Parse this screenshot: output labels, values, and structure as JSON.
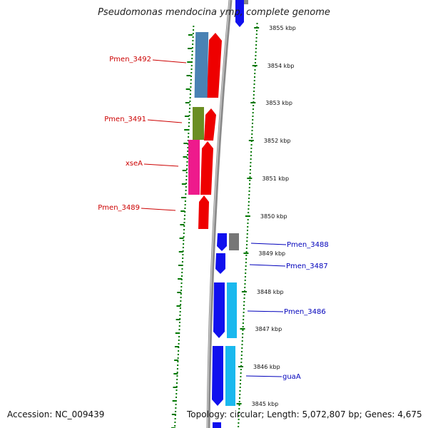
{
  "title": "Pseudomonas mendocina ymp, complete genome",
  "footer": {
    "accession": "Accession: NC_009439",
    "topology": "Topology: circular; Length: 5,072,807 bp; Genes: 4,675"
  },
  "colors": {
    "forward_label": "#cc0000",
    "reverse_label": "#0000bb",
    "tick_mark": "#007700",
    "backbone": "#888888",
    "red_cds": "#ee0000",
    "steelblue_cds": "#4a82b4",
    "olive_cds": "#6b8e23",
    "pink_cds": "#ee1a8c",
    "blue_cds": "#1010ee",
    "cyan_cds": "#1ab8ee",
    "gray_cds": "#777777"
  },
  "ticks": [
    "3855 kbp",
    "3854 kbp",
    "3853 kbp",
    "3852 kbp",
    "3851 kbp",
    "3850 kbp",
    "3849 kbp",
    "3848 kbp",
    "3847 kbp",
    "3846 kbp",
    "3845 kbp"
  ],
  "labels_forward": [
    "Pmen_3492",
    "Pmen_3491",
    "xseA",
    "Pmen_3489"
  ],
  "labels_reverse": [
    "Pmen_3488",
    "Pmen_3487",
    "Pmen_3486",
    "guaA"
  ]
}
